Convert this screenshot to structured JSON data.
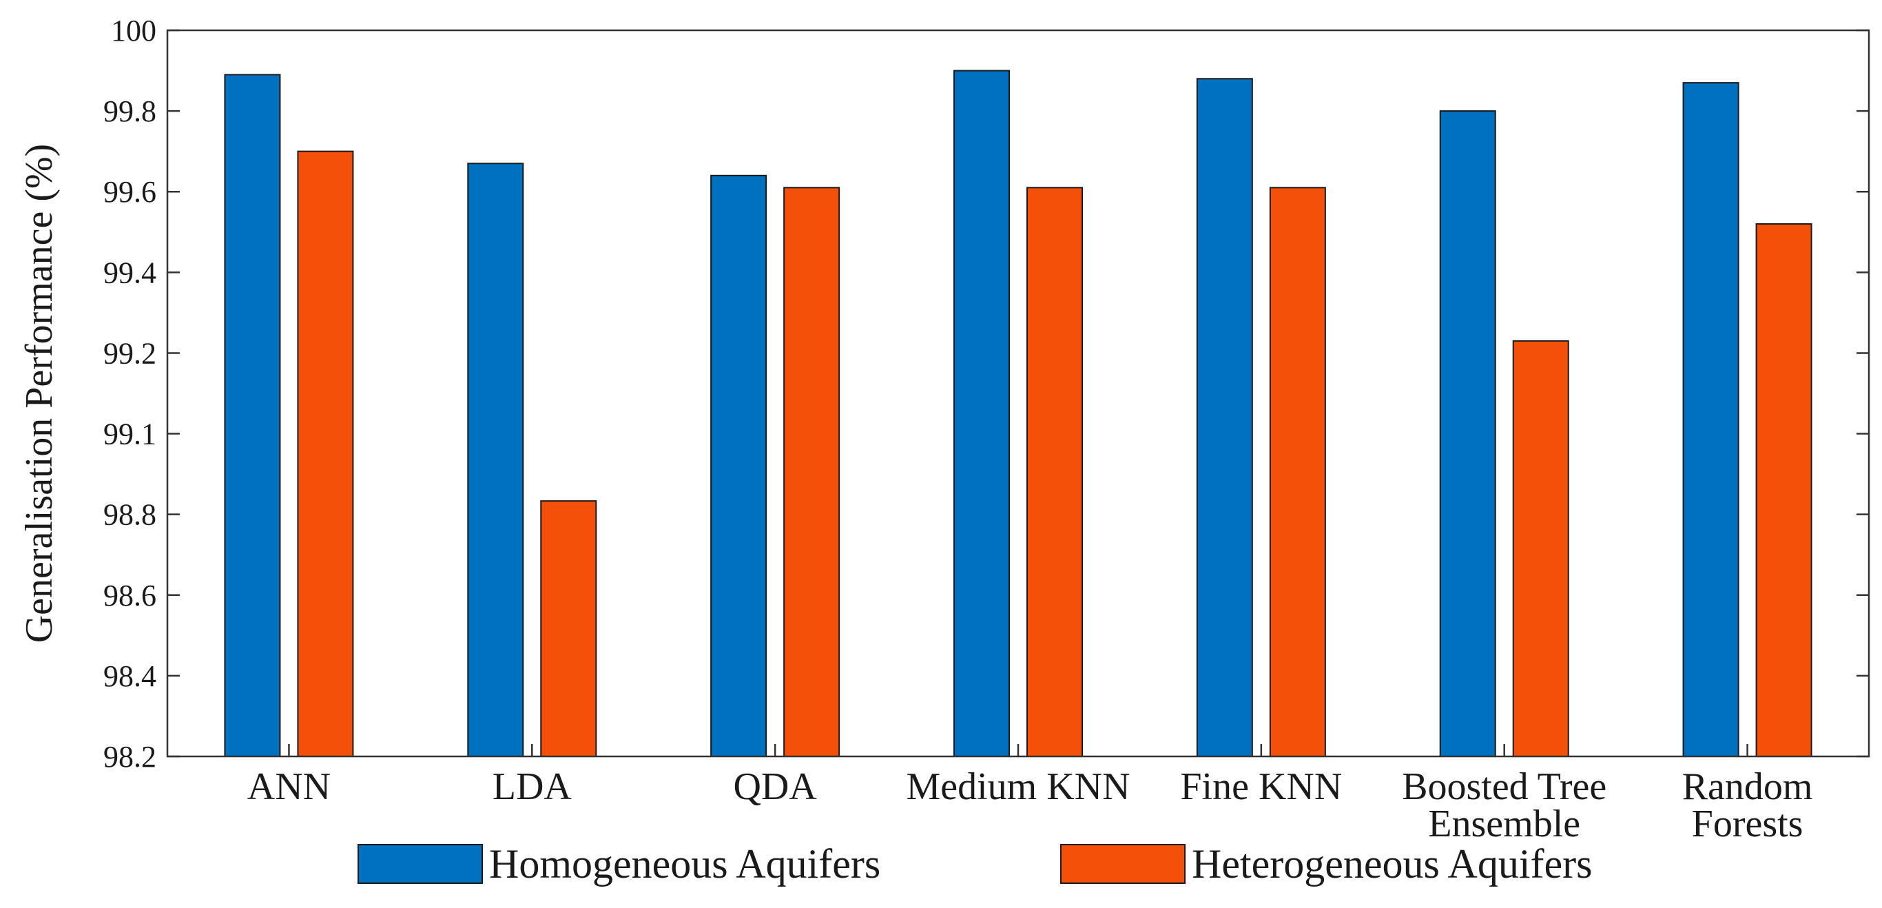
{
  "chart_data": {
    "type": "bar",
    "title": "",
    "xlabel": "",
    "ylabel": "Generalisation Performance (%)",
    "y_ticks": [
      "100",
      "99.8",
      "99.6",
      "99.4",
      "99.2",
      "99.1",
      "98.8",
      "98.6",
      "98.4",
      "98.2"
    ],
    "categories": [
      [
        "ANN"
      ],
      [
        "LDA"
      ],
      [
        "QDA"
      ],
      [
        "Medium KNN"
      ],
      [
        "Fine KNN"
      ],
      [
        "Boosted Tree",
        "Ensemble"
      ],
      [
        "Random",
        "Forests"
      ]
    ],
    "series": [
      {
        "name": "Homogeneous Aquifers",
        "color": "#0070c0",
        "values": [
          99.89,
          99.67,
          99.64,
          99.9,
          99.88,
          99.8,
          99.87
        ]
      },
      {
        "name": "Heterogeneous Aquifers",
        "color": "#f4500a",
        "values": [
          99.7,
          98.85,
          99.61,
          99.61,
          99.61,
          99.23,
          99.52
        ]
      }
    ],
    "legend_position": "bottom-center",
    "grid": false
  }
}
